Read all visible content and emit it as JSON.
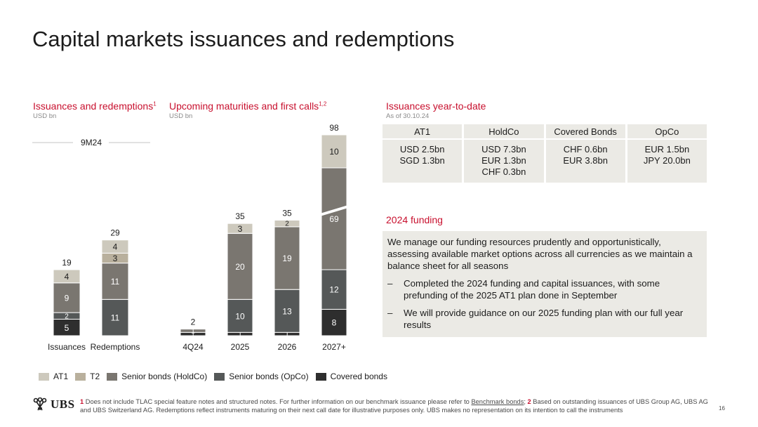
{
  "page": {
    "title": "Capital markets issuances and redemptions",
    "page_number": "16"
  },
  "issuances_redemptions": {
    "title": "Issuances and redemptions",
    "title_sup": "1",
    "unit": "USD bn",
    "period": "9M24"
  },
  "maturities": {
    "title": "Upcoming maturities and first calls",
    "title_sup": "1,2",
    "unit": "USD bn"
  },
  "ytd": {
    "title": "Issuances year-to-date",
    "as_of": "As of 30.10.24",
    "columns": [
      {
        "header": "AT1",
        "lines": [
          "USD 2.5bn",
          "SGD 1.3bn",
          ""
        ]
      },
      {
        "header": "HoldCo",
        "lines": [
          "USD 7.3bn",
          "EUR 1.3bn",
          "CHF 0.3bn"
        ]
      },
      {
        "header": "Covered Bonds",
        "lines": [
          "CHF 0.6bn",
          "EUR 3.8bn",
          ""
        ]
      },
      {
        "header": "OpCo",
        "lines": [
          "EUR 1.5bn",
          "JPY 20.0bn",
          ""
        ]
      }
    ]
  },
  "funding": {
    "title": "2024 funding",
    "intro": "We manage our funding resources prudently and opportunistically, assessing available market options across all currencies as we maintain a balance sheet for all seasons",
    "bullets": [
      "Completed the 2024 funding and capital issuances, with some prefunding of the 2025 AT1 plan done in September",
      "We will provide guidance on our 2025 funding plan with our full year results"
    ]
  },
  "legend": [
    {
      "label": "AT1",
      "color": "#cdc9bd"
    },
    {
      "label": "T2",
      "color": "#b9b09d"
    },
    {
      "label": "Senior bonds (HoldCo)",
      "color": "#7a7670"
    },
    {
      "label": "Senior bonds (OpCo)",
      "color": "#555858"
    },
    {
      "label": "Covered bonds",
      "color": "#2e2e2e"
    }
  ],
  "footnote": {
    "n1": "1",
    "text1": " Does not include TLAC special feature notes and structured notes.  For further information on our benchmark issuance please refer to ",
    "link": "Benchmark bonds",
    "text2": "; ",
    "n2": "2",
    "text3": " Based on outstanding issuances of UBS Group AG, UBS AG and UBS Switzerland AG. Redemptions reflect instruments maturing on their next call date for illustrative purposes only. UBS makes no representation on its intention to call the instruments"
  },
  "logo": {
    "text": "UBS"
  },
  "chart_data": [
    {
      "type": "bar",
      "stacked": true,
      "title": "Issuances and redemptions",
      "unit": "USD bn",
      "period": "9M24",
      "categories": [
        "Issuances",
        "Redemptions"
      ],
      "series": [
        {
          "name": "Covered bonds",
          "values": [
            5,
            0
          ]
        },
        {
          "name": "Senior bonds (OpCo)",
          "values": [
            2,
            11
          ]
        },
        {
          "name": "Senior bonds (HoldCo)",
          "values": [
            9,
            11
          ]
        },
        {
          "name": "T2",
          "values": [
            0,
            3
          ]
        },
        {
          "name": "AT1",
          "values": [
            4,
            4
          ]
        }
      ],
      "totals": [
        19,
        29
      ]
    },
    {
      "type": "bar",
      "stacked": true,
      "title": "Upcoming maturities and first calls",
      "unit": "USD bn",
      "categories": [
        "4Q24",
        "2025",
        "2026",
        "2027+"
      ],
      "series": [
        {
          "name": "Covered bonds",
          "values": [
            1,
            1,
            1,
            8
          ]
        },
        {
          "name": "Senior bonds (OpCo)",
          "values": [
            0,
            10,
            13,
            12
          ]
        },
        {
          "name": "Senior bonds (HoldCo)",
          "values": [
            1,
            20,
            19,
            69
          ]
        },
        {
          "name": "T2",
          "values": [
            0,
            0,
            0,
            0
          ]
        },
        {
          "name": "AT1",
          "values": [
            0,
            3,
            2,
            10
          ]
        }
      ],
      "totals": [
        2,
        35,
        35,
        98
      ],
      "axis_break": "2027+"
    }
  ]
}
